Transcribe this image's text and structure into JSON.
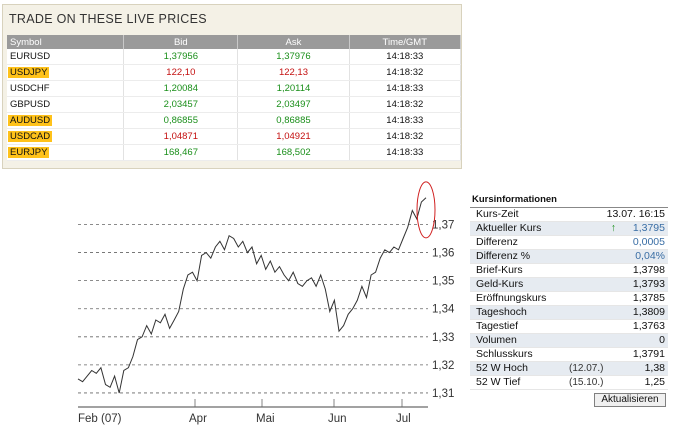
{
  "prices": {
    "title": "TRADE ON THESE LIVE PRICES",
    "columns": [
      "Symbol",
      "Bid",
      "Ask",
      "Time/GMT"
    ],
    "rows": [
      {
        "symbol": "EURUSD",
        "bid": "1,37956",
        "ask": "1,37976",
        "time": "14:18:33",
        "direction": "up",
        "highlight": false
      },
      {
        "symbol": "USDJPY",
        "bid": "122,10",
        "ask": "122,13",
        "time": "14:18:32",
        "direction": "down",
        "highlight": true
      },
      {
        "symbol": "USDCHF",
        "bid": "1,20084",
        "ask": "1,20114",
        "time": "14:18:33",
        "direction": "up",
        "highlight": false
      },
      {
        "symbol": "GBPUSD",
        "bid": "2,03457",
        "ask": "2,03497",
        "time": "14:18:32",
        "direction": "up",
        "highlight": false
      },
      {
        "symbol": "AUDUSD",
        "bid": "0,86855",
        "ask": "0,86885",
        "time": "14:18:33",
        "direction": "up",
        "highlight": true
      },
      {
        "symbol": "USDCAD",
        "bid": "1,04871",
        "ask": "1,04921",
        "time": "14:18:32",
        "direction": "down",
        "highlight": true
      },
      {
        "symbol": "EURJPY",
        "bid": "168,467",
        "ask": "168,502",
        "time": "14:18:33",
        "direction": "up",
        "highlight": true
      }
    ],
    "colors": {
      "up": "#1a8f1a",
      "down": "#c41010",
      "highlight": "#ffc21a"
    }
  },
  "chart_data": {
    "type": "line",
    "x_ticks": [
      "Feb (07)",
      "Apr",
      "Mai",
      "Jun",
      "Jul"
    ],
    "y_ticks": [
      "1,37",
      "1,36",
      "1,35",
      "1,34",
      "1,33",
      "1,32",
      "1,31"
    ],
    "ylim": [
      1.305,
      1.383
    ],
    "grid": "horizontal dashed",
    "series": [
      {
        "values": [
          1.315,
          1.314,
          1.316,
          1.318,
          1.317,
          1.319,
          1.313,
          1.312,
          1.316,
          1.31,
          1.318,
          1.319,
          1.323,
          1.329,
          1.33,
          1.334,
          1.331,
          1.336,
          1.335,
          1.338,
          1.333,
          1.336,
          1.339,
          1.347,
          1.352,
          1.353,
          1.35,
          1.359,
          1.36,
          1.358,
          1.362,
          1.364,
          1.361,
          1.366,
          1.365,
          1.362,
          1.364,
          1.36,
          1.362,
          1.356,
          1.359,
          1.354,
          1.357,
          1.353,
          1.355,
          1.352,
          1.35,
          1.353,
          1.349,
          1.348,
          1.35,
          1.351,
          1.348,
          1.352,
          1.347,
          1.339,
          1.343,
          1.332,
          1.334,
          1.338,
          1.34,
          1.343,
          1.348,
          1.344,
          1.352,
          1.353,
          1.358,
          1.361,
          1.36,
          1.362,
          1.361,
          1.365,
          1.369,
          1.375,
          1.372,
          1.378,
          1.3795
        ]
      }
    ],
    "annotation": "red ellipse around latest values",
    "line_color": "#333333",
    "annotation_color": "#d02020"
  },
  "kurs": {
    "title": "Kursinformationen",
    "rows": [
      {
        "label": "Kurs-Zeit",
        "value": "13.07. 16:15",
        "date": "",
        "shade": false,
        "blue": false,
        "arrow": false
      },
      {
        "label": "Aktueller Kurs",
        "value": "1,3795",
        "date": "",
        "shade": true,
        "blue": true,
        "arrow": true
      },
      {
        "label": "Differenz",
        "value": "0,0005",
        "date": "",
        "shade": false,
        "blue": true,
        "arrow": false
      },
      {
        "label": "Differenz %",
        "value": "0,04%",
        "date": "",
        "shade": true,
        "blue": true,
        "arrow": false
      },
      {
        "label": "Brief-Kurs",
        "value": "1,3798",
        "date": "",
        "shade": false,
        "blue": false,
        "arrow": false
      },
      {
        "label": "Geld-Kurs",
        "value": "1,3793",
        "date": "",
        "shade": true,
        "blue": false,
        "arrow": false
      },
      {
        "label": "Eröffnungskurs",
        "value": "1,3785",
        "date": "",
        "shade": false,
        "blue": false,
        "arrow": false
      },
      {
        "label": "Tageshoch",
        "value": "1,3809",
        "date": "",
        "shade": true,
        "blue": false,
        "arrow": false
      },
      {
        "label": "Tagestief",
        "value": "1,3763",
        "date": "",
        "shade": false,
        "blue": false,
        "arrow": false
      },
      {
        "label": "Volumen",
        "value": "0",
        "date": "",
        "shade": true,
        "blue": false,
        "arrow": false
      },
      {
        "label": "Schlusskurs",
        "value": "1,3791",
        "date": "",
        "shade": false,
        "blue": false,
        "arrow": false
      },
      {
        "label": "52 W Hoch",
        "value": "1,38",
        "date": "(12.07.)",
        "shade": true,
        "blue": false,
        "arrow": false
      },
      {
        "label": "52 W Tief",
        "value": "1,25",
        "date": "(15.10.)",
        "shade": false,
        "blue": false,
        "arrow": false
      }
    ],
    "arrow_icon": "up-arrow-icon",
    "refresh_label": "Aktualisieren"
  }
}
